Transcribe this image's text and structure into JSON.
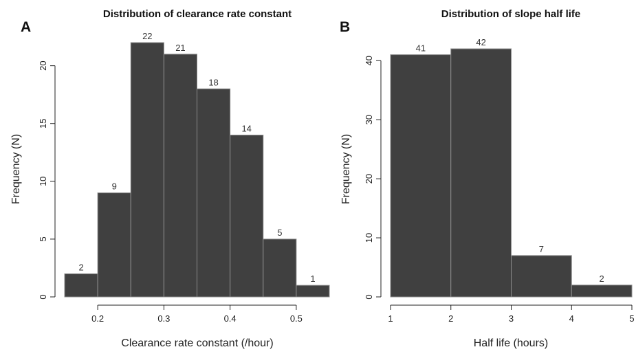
{
  "chart_data": [
    {
      "type": "bar",
      "panel_label": "A",
      "title": "Distribution of clearance rate constant",
      "xlabel": "Clearance rate constant (/hour)",
      "ylabel": "Frequency (N)",
      "bins": [
        {
          "from": 0.15,
          "to": 0.2,
          "value": 2
        },
        {
          "from": 0.2,
          "to": 0.25,
          "value": 9
        },
        {
          "from": 0.25,
          "to": 0.3,
          "value": 22
        },
        {
          "from": 0.3,
          "to": 0.35,
          "value": 21
        },
        {
          "from": 0.35,
          "to": 0.4,
          "value": 18
        },
        {
          "from": 0.4,
          "to": 0.45,
          "value": 14
        },
        {
          "from": 0.45,
          "to": 0.5,
          "value": 5
        },
        {
          "from": 0.5,
          "to": 0.55,
          "value": 1
        }
      ],
      "xlim": [
        0.15,
        0.55
      ],
      "ylim": [
        0,
        22
      ],
      "x_ticks": [
        {
          "value": 0.2,
          "label": "0.2"
        },
        {
          "value": 0.3,
          "label": "0.3"
        },
        {
          "value": 0.4,
          "label": "0.4"
        },
        {
          "value": 0.5,
          "label": "0.5"
        }
      ],
      "y_ticks": [
        {
          "value": 0,
          "label": "0"
        },
        {
          "value": 5,
          "label": "5"
        },
        {
          "value": 10,
          "label": "10"
        },
        {
          "value": 15,
          "label": "15"
        },
        {
          "value": 20,
          "label": "20"
        }
      ],
      "grid": false,
      "bar_color": "#404040",
      "bar_edge_color": "#8c8c8c"
    },
    {
      "type": "bar",
      "panel_label": "B",
      "title": "Distribution of slope half life",
      "xlabel": "Half life (hours)",
      "ylabel": "Frequency (N)",
      "bins": [
        {
          "from": 1,
          "to": 2,
          "value": 41
        },
        {
          "from": 2,
          "to": 3,
          "value": 42
        },
        {
          "from": 3,
          "to": 4,
          "value": 7
        },
        {
          "from": 4,
          "to": 5,
          "value": 2
        }
      ],
      "xlim": [
        1,
        5
      ],
      "ylim": [
        0,
        42
      ],
      "x_ticks": [
        {
          "value": 1,
          "label": "1"
        },
        {
          "value": 2,
          "label": "2"
        },
        {
          "value": 3,
          "label": "3"
        },
        {
          "value": 4,
          "label": "4"
        },
        {
          "value": 5,
          "label": "5"
        }
      ],
      "y_ticks": [
        {
          "value": 0,
          "label": "0"
        },
        {
          "value": 10,
          "label": "10"
        },
        {
          "value": 20,
          "label": "20"
        },
        {
          "value": 30,
          "label": "30"
        },
        {
          "value": 40,
          "label": "40"
        }
      ],
      "grid": false,
      "bar_color": "#404040",
      "bar_edge_color": "#8c8c8c"
    }
  ]
}
